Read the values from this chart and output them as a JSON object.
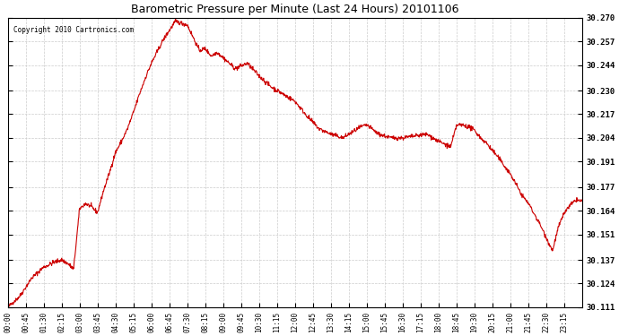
{
  "title": "Barometric Pressure per Minute (Last 24 Hours) 20101106",
  "copyright": "Copyright 2010 Cartronics.com",
  "line_color": "#cc0000",
  "bg_color": "#ffffff",
  "grid_color": "#cccccc",
  "ylim": [
    30.111,
    30.27
  ],
  "yticks": [
    30.111,
    30.124,
    30.137,
    30.151,
    30.164,
    30.177,
    30.191,
    30.204,
    30.217,
    30.23,
    30.244,
    30.257,
    30.27
  ],
  "xtick_labels": [
    "00:00",
    "00:45",
    "01:30",
    "02:15",
    "03:00",
    "03:45",
    "04:30",
    "05:15",
    "06:00",
    "06:45",
    "07:30",
    "08:15",
    "09:00",
    "09:45",
    "10:30",
    "11:15",
    "12:00",
    "12:45",
    "13:30",
    "14:15",
    "15:00",
    "15:45",
    "16:30",
    "17:15",
    "18:00",
    "18:45",
    "19:30",
    "20:15",
    "21:00",
    "21:45",
    "22:30",
    "23:15"
  ],
  "control_x": [
    0,
    30,
    60,
    90,
    120,
    135,
    150,
    165,
    180,
    195,
    210,
    225,
    240,
    255,
    270,
    285,
    300,
    315,
    330,
    345,
    360,
    390,
    420,
    450,
    480,
    495,
    510,
    525,
    540,
    570,
    600,
    630,
    660,
    690,
    720,
    750,
    780,
    810,
    840,
    855,
    870,
    885,
    900,
    930,
    960,
    990,
    1020,
    1050,
    1080,
    1110,
    1125,
    1140,
    1155,
    1170,
    1185,
    1200,
    1215,
    1230,
    1260,
    1290,
    1305,
    1320,
    1335,
    1350,
    1365,
    1380,
    1395,
    1410,
    1425,
    1439
  ],
  "control_y": [
    30.111,
    30.117,
    30.127,
    30.133,
    30.136,
    30.137,
    30.135,
    30.132,
    30.165,
    30.168,
    30.166,
    30.163,
    30.175,
    30.185,
    30.196,
    30.202,
    30.209,
    30.218,
    30.228,
    30.237,
    30.245,
    30.258,
    30.268,
    30.266,
    30.252,
    30.253,
    30.249,
    30.251,
    30.248,
    30.242,
    30.245,
    30.238,
    30.232,
    30.228,
    30.224,
    30.216,
    30.209,
    30.206,
    30.204,
    30.206,
    30.208,
    30.21,
    30.211,
    30.206,
    30.204,
    30.204,
    30.205,
    30.206,
    30.202,
    30.199,
    30.211,
    30.211,
    30.21,
    30.208,
    30.204,
    30.201,
    30.197,
    30.193,
    30.184,
    30.172,
    30.168,
    30.162,
    30.156,
    30.149,
    30.142,
    30.155,
    30.163,
    30.167,
    30.17,
    30.169
  ]
}
